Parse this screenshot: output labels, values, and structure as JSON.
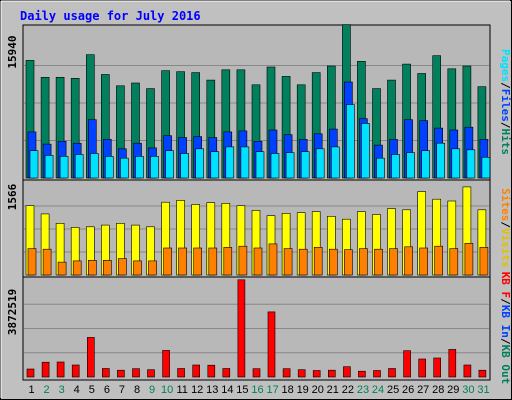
{
  "chart_data": {
    "type": "bar",
    "title": "Daily usage for July 2016",
    "categories": [
      "1",
      "2",
      "3",
      "4",
      "5",
      "6",
      "7",
      "8",
      "9",
      "10",
      "11",
      "12",
      "13",
      "14",
      "15",
      "16",
      "17",
      "18",
      "19",
      "20",
      "21",
      "22",
      "23",
      "24",
      "25",
      "26",
      "27",
      "28",
      "29",
      "30",
      "31"
    ],
    "weekend_days": [
      "2",
      "3",
      "9",
      "10",
      "16",
      "17",
      "23",
      "24",
      "30",
      "31"
    ],
    "panels": [
      {
        "name": "hits-files-pages",
        "max_label": "15940",
        "ylim": [
          0,
          15940
        ],
        "legend": [
          "Pages",
          "/",
          "Files",
          "/",
          "Hits"
        ],
        "series": [
          {
            "name": "Hits",
            "color": "#00805c",
            "values": [
              12500,
              10700,
              10700,
              10600,
              13100,
              11000,
              9800,
              10100,
              9500,
              11400,
              11300,
              11200,
              10400,
              11500,
              11500,
              9900,
              11800,
              10800,
              9900,
              11200,
              11900,
              16300,
              12400,
              9500,
              10400,
              12100,
              11100,
              13000,
              11600,
              11900,
              9700
            ]
          },
          {
            "name": "Files",
            "color": "#0040ff",
            "values": [
              4900,
              3600,
              3900,
              3700,
              6200,
              4100,
              3100,
              3700,
              3200,
              4500,
              4300,
              4400,
              4300,
              4900,
              5000,
              3900,
              5100,
              4600,
              4100,
              4700,
              5200,
              10200,
              6300,
              3500,
              4100,
              6200,
              6100,
              5300,
              5100,
              5400,
              4100
            ]
          },
          {
            "name": "Pages",
            "color": "#00e0ff",
            "values": [
              2900,
              2400,
              2300,
              2500,
              2600,
              2300,
              2100,
              2300,
              2300,
              2900,
              2600,
              3100,
              2800,
              3300,
              3300,
              2800,
              2600,
              2700,
              2800,
              3100,
              3300,
              7800,
              5800,
              2100,
              2500,
              2700,
              2900,
              3700,
              3100,
              3000,
              2200
            ]
          }
        ]
      },
      {
        "name": "visits-sites",
        "max_label": "1566",
        "ylim": [
          0,
          1566
        ],
        "legend": [
          "Visits",
          "/",
          "Sites"
        ],
        "series": [
          {
            "name": "Visits",
            "color": "#ffff00",
            "values": [
              1180,
              1040,
              880,
              810,
              820,
              850,
              880,
              850,
              820,
              1240,
              1270,
              1200,
              1230,
              1220,
              1180,
              1100,
              1010,
              1050,
              1060,
              1080,
              1000,
              950,
              1080,
              1030,
              1130,
              1110,
              1420,
              1290,
              1260,
              1500,
              1110
            ]
          },
          {
            "name": "Sites",
            "color": "#ff8000",
            "values": [
              450,
              440,
              220,
              240,
              250,
              250,
              280,
              240,
              240,
              460,
              460,
              460,
              460,
              470,
              490,
              460,
              530,
              450,
              440,
              470,
              440,
              430,
              450,
              440,
              450,
              480,
              460,
              490,
              450,
              540,
              470
            ]
          }
        ]
      },
      {
        "name": "kb-in-out",
        "max_label": "3872519",
        "ylim": [
          0,
          3872519
        ],
        "legend": [
          "KB F",
          "/",
          "KB In",
          "/",
          "KB Out"
        ],
        "series": [
          {
            "name": "KB F",
            "color": "#ff0000",
            "values": [
              320000,
              590000,
              600000,
              480000,
              1580000,
              340000,
              270000,
              330000,
              290000,
              1060000,
              340000,
              480000,
              470000,
              340000,
              3880000,
              330000,
              2600000,
              330000,
              290000,
              260000,
              270000,
              410000,
              230000,
              260000,
              340000,
              1050000,
              720000,
              760000,
              1100000,
              480000,
              270000
            ]
          }
        ]
      }
    ]
  }
}
